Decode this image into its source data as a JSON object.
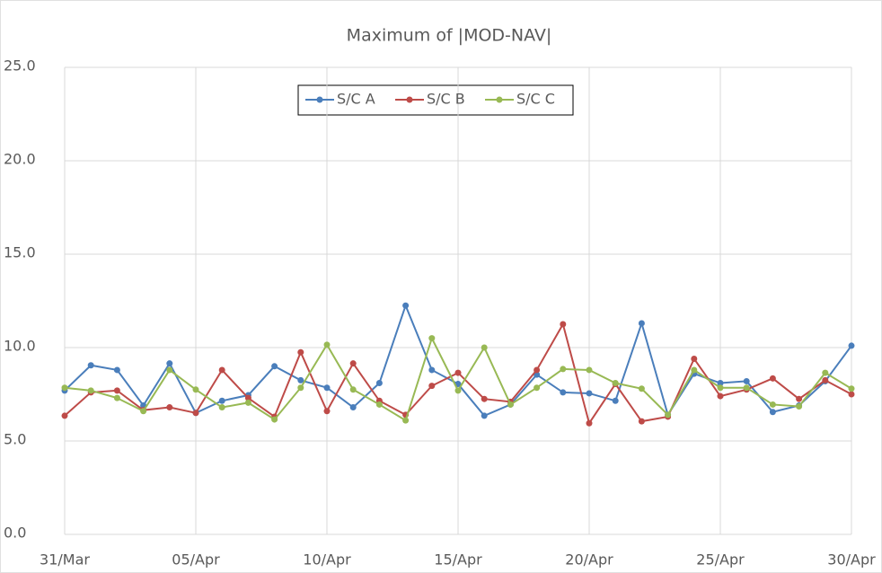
{
  "chart_data": {
    "type": "line",
    "title": "Maximum of |MOD-NAV|",
    "categories": [
      "31/Mar",
      null,
      null,
      null,
      null,
      "05/Apr",
      null,
      null,
      null,
      null,
      "10/Apr",
      null,
      null,
      null,
      null,
      "15/Apr",
      null,
      null,
      null,
      null,
      "20/Apr",
      null,
      null,
      null,
      null,
      "25/Apr",
      null,
      null,
      null,
      null,
      "30/Apr"
    ],
    "series": [
      {
        "name": "S/C A",
        "color": "#4a7ebb",
        "values": [
          7.7,
          9.05,
          8.8,
          6.9,
          9.15,
          6.5,
          7.15,
          7.45,
          9.0,
          8.25,
          7.85,
          6.8,
          8.1,
          12.25,
          8.8,
          8.05,
          6.35,
          6.95,
          8.55,
          7.6,
          7.55,
          7.15,
          11.3,
          6.4,
          8.6,
          8.1,
          8.2,
          6.55,
          6.9,
          8.2,
          10.1
        ]
      },
      {
        "name": "S/C B",
        "color": "#be4b48",
        "values": [
          6.35,
          7.6,
          7.7,
          6.65,
          6.8,
          6.5,
          8.8,
          7.3,
          6.3,
          9.75,
          6.6,
          9.15,
          7.15,
          6.4,
          7.95,
          8.65,
          7.25,
          7.1,
          8.8,
          11.25,
          5.95,
          8.05,
          6.05,
          6.3,
          9.4,
          7.4,
          7.75,
          8.35,
          7.25,
          8.25,
          7.5
        ]
      },
      {
        "name": "S/C C",
        "color": "#98b954",
        "values": [
          7.85,
          7.7,
          7.3,
          6.6,
          8.8,
          7.75,
          6.8,
          7.05,
          6.15,
          7.85,
          10.15,
          7.75,
          6.95,
          6.1,
          10.5,
          7.7,
          10.0,
          6.95,
          7.85,
          8.85,
          8.8,
          8.1,
          7.8,
          6.4,
          8.8,
          7.85,
          7.85,
          6.95,
          6.85,
          8.65,
          7.8
        ]
      }
    ],
    "ylim": [
      0,
      25
    ],
    "yticks": [
      {
        "value": 0,
        "label": "0.0"
      },
      {
        "value": 5,
        "label": "5.0"
      },
      {
        "value": 10,
        "label": "10.0"
      },
      {
        "value": 15,
        "label": "15.0"
      },
      {
        "value": 20,
        "label": "20.0"
      },
      {
        "value": 25,
        "label": "25.0"
      }
    ],
    "grid": true,
    "legend": "top"
  }
}
